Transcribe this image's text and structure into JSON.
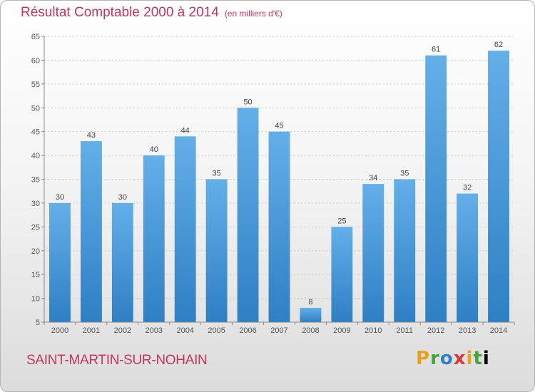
{
  "header": {
    "title": "Résultat Comptable 2000 à 2014",
    "unit": "(en milliers d'€)"
  },
  "footer": {
    "commune": "SAINT-MARTIN-SUR-NOHAIN",
    "logo_letters": [
      "P",
      "r",
      "o",
      "x",
      "i",
      "t",
      "i"
    ]
  },
  "colors": {
    "bar_top": "#63afe8",
    "bar_bottom": "#2e7fc4",
    "title": "#c4355e",
    "grid": "#c8c8c8"
  },
  "chart_data": {
    "type": "bar",
    "title": "Résultat Comptable 2000 à 2014",
    "subtitle": "(en milliers d'€)",
    "categories": [
      "2000",
      "2001",
      "2002",
      "2003",
      "2004",
      "2005",
      "2006",
      "2007",
      "2008",
      "2009",
      "2010",
      "2011",
      "2012",
      "2013",
      "2014"
    ],
    "values": [
      30,
      43,
      30,
      40,
      44,
      35,
      50,
      45,
      8,
      25,
      34,
      35,
      61,
      32,
      62
    ],
    "ylim": [
      5,
      65
    ],
    "yticks": [
      5,
      10,
      15,
      20,
      25,
      30,
      35,
      40,
      45,
      50,
      55,
      60,
      65
    ],
    "grid": "horizontal dashed",
    "legend": "none"
  }
}
